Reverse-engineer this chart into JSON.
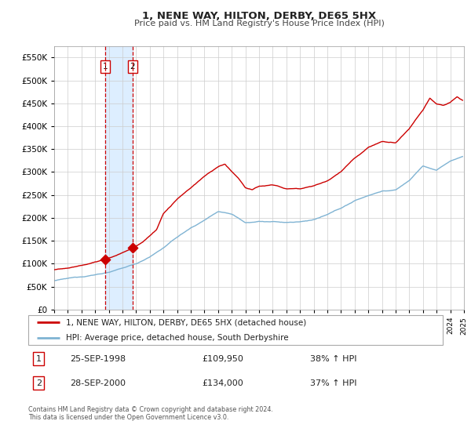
{
  "title": "1, NENE WAY, HILTON, DERBY, DE65 5HX",
  "subtitle": "Price paid vs. HM Land Registry's House Price Index (HPI)",
  "legend_entry1": "1, NENE WAY, HILTON, DERBY, DE65 5HX (detached house)",
  "legend_entry2": "HPI: Average price, detached house, South Derbyshire",
  "sale1_date": "25-SEP-1998",
  "sale1_price": 109950,
  "sale1_label": "38% ↑ HPI",
  "sale2_date": "28-SEP-2000",
  "sale2_price": 134000,
  "sale2_label": "37% ↑ HPI",
  "footer1": "Contains HM Land Registry data © Crown copyright and database right 2024.",
  "footer2": "This data is licensed under the Open Government Licence v3.0.",
  "red_color": "#cc0000",
  "blue_color": "#7fb3d3",
  "shading_color": "#ddeeff",
  "background_color": "#ffffff",
  "grid_color": "#cccccc",
  "ylim": [
    0,
    575000
  ],
  "sale1_year": 1998.73,
  "sale2_year": 2000.74,
  "hpi_anchors_x": [
    1995.0,
    1996.0,
    1997.0,
    1998.0,
    1999.0,
    2000.0,
    2001.0,
    2002.0,
    2003.0,
    2004.0,
    2005.0,
    2006.0,
    2007.0,
    2008.0,
    2009.0,
    2010.0,
    2011.0,
    2012.0,
    2013.0,
    2014.0,
    2015.0,
    2016.0,
    2017.0,
    2018.0,
    2019.0,
    2020.0,
    2021.0,
    2022.0,
    2023.0,
    2024.0,
    2024.9
  ],
  "hpi_anchors_y": [
    63000,
    67000,
    71000,
    76000,
    82000,
    90000,
    100000,
    115000,
    135000,
    158000,
    178000,
    195000,
    215000,
    210000,
    192000,
    195000,
    194000,
    192000,
    193000,
    198000,
    208000,
    222000,
    238000,
    250000,
    260000,
    262000,
    283000,
    315000,
    305000,
    325000,
    335000
  ],
  "house_anchors_x": [
    1995.0,
    1996.0,
    1997.0,
    1998.0,
    1998.73,
    1999.5,
    2000.0,
    2000.74,
    2001.5,
    2002.5,
    2003.0,
    2004.0,
    2005.0,
    2006.0,
    2007.0,
    2007.5,
    2008.0,
    2008.5,
    2009.0,
    2009.5,
    2010.0,
    2011.0,
    2012.0,
    2013.0,
    2014.0,
    2015.0,
    2016.0,
    2017.0,
    2017.5,
    2018.0,
    2019.0,
    2020.0,
    2021.0,
    2022.0,
    2022.5,
    2023.0,
    2023.5,
    2024.0,
    2024.5,
    2024.9
  ],
  "house_anchors_y": [
    87000,
    91000,
    96000,
    104000,
    109950,
    118000,
    125000,
    134000,
    148000,
    175000,
    210000,
    240000,
    265000,
    290000,
    310000,
    315000,
    300000,
    285000,
    265000,
    260000,
    268000,
    270000,
    262000,
    262000,
    270000,
    280000,
    300000,
    330000,
    342000,
    355000,
    368000,
    365000,
    395000,
    435000,
    462000,
    450000,
    448000,
    455000,
    468000,
    460000
  ]
}
